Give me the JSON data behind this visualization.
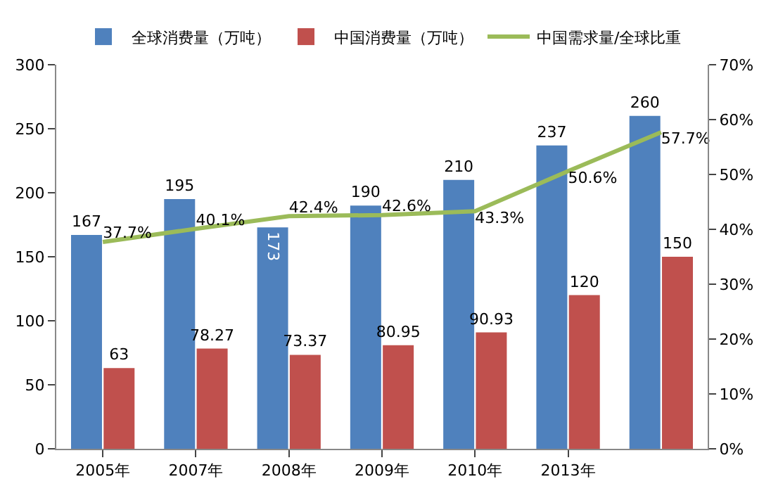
{
  "chart_data": {
    "type": "bar",
    "categories": [
      "2005年",
      "2007年",
      "2008年",
      "2009年",
      "2010年",
      "2013年",
      null
    ],
    "series": [
      {
        "name": "全球消费量（万吨）",
        "color": "#4f81bd",
        "values": [
          167,
          195,
          173,
          190,
          210,
          237,
          260
        ]
      },
      {
        "name": "中国消费量（万吨）",
        "color": "#c0504d",
        "values": [
          63,
          78.27,
          73.37,
          80.95,
          90.93,
          120,
          150
        ]
      },
      {
        "name": "中国需求量/全球比重",
        "type": "line",
        "axis": "y2",
        "color": "#9bbb59",
        "values": [
          37.7,
          40.1,
          42.4,
          42.6,
          43.3,
          50.6,
          57.7
        ],
        "value_labels": [
          "37.7%",
          "40.1%",
          "42.4%",
          "42.6%",
          "43.3%",
          "50.6%",
          "57.7%"
        ]
      }
    ],
    "ylim": [
      0,
      300
    ],
    "yticks": [
      0,
      50,
      100,
      150,
      200,
      250,
      300
    ],
    "y2lim": [
      0,
      70
    ],
    "y2ticks": [
      {
        "value": 0,
        "label": "0%"
      },
      {
        "value": 10,
        "label": "10%"
      },
      {
        "value": 20,
        "label": "20%"
      },
      {
        "value": 30,
        "label": "30%"
      },
      {
        "value": 40,
        "label": "40%"
      },
      {
        "value": 50,
        "label": "50%"
      },
      {
        "value": 60,
        "label": "60%"
      },
      {
        "value": 70,
        "label": "70%"
      }
    ],
    "data_labels": true,
    "grid": false,
    "legend": "top",
    "marker": "none"
  }
}
